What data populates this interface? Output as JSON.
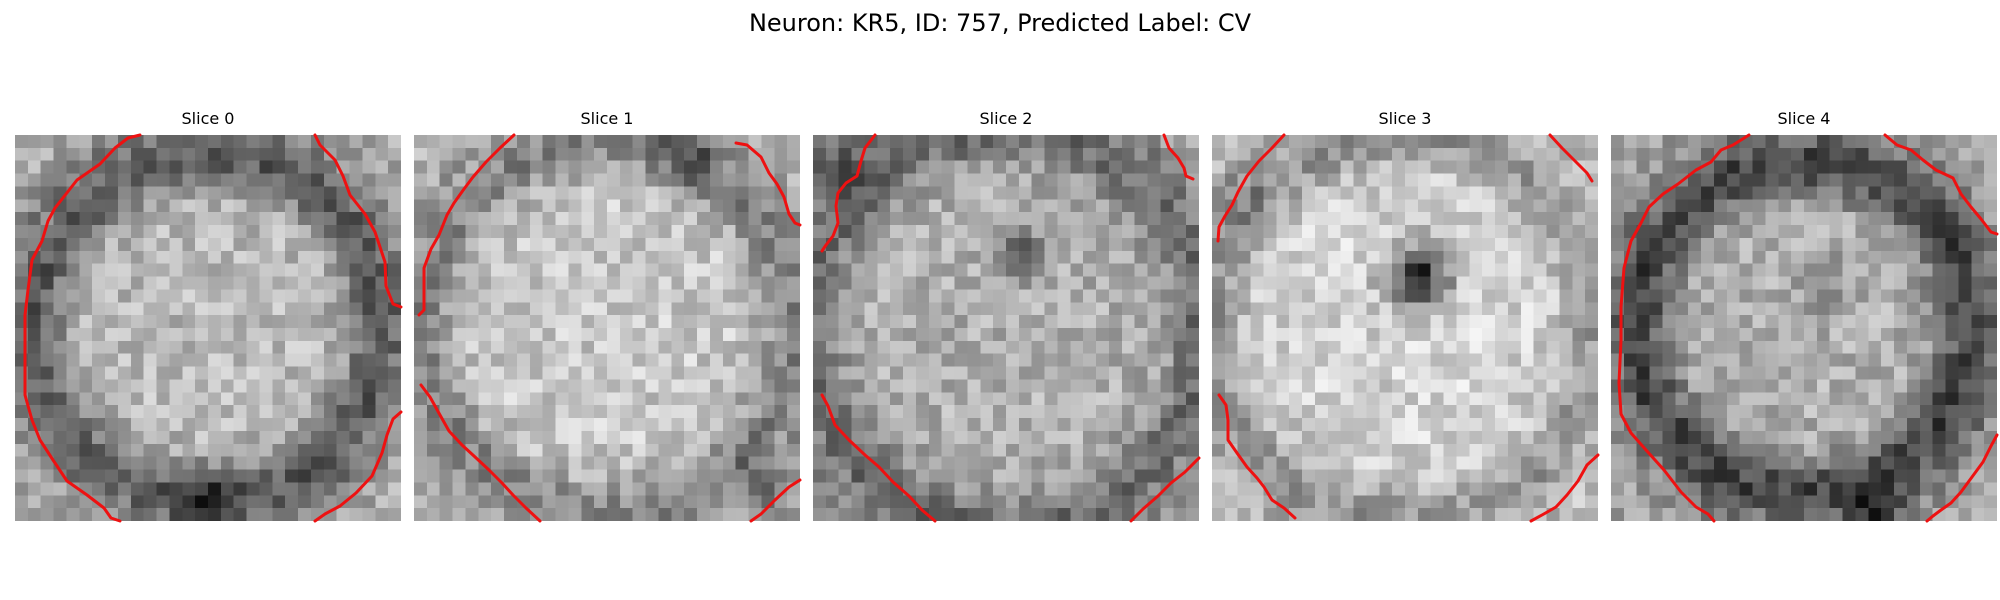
{
  "figure": {
    "title": "Neuron: KR5, ID: 757, Predicted Label: CV",
    "contour_color": "#ee1111",
    "colormap": "gray"
  },
  "slices": [
    {
      "title": "Slice 0"
    },
    {
      "title": "Slice 1"
    },
    {
      "title": "Slice 2"
    },
    {
      "title": "Slice 3"
    },
    {
      "title": "Slice 4"
    }
  ]
}
